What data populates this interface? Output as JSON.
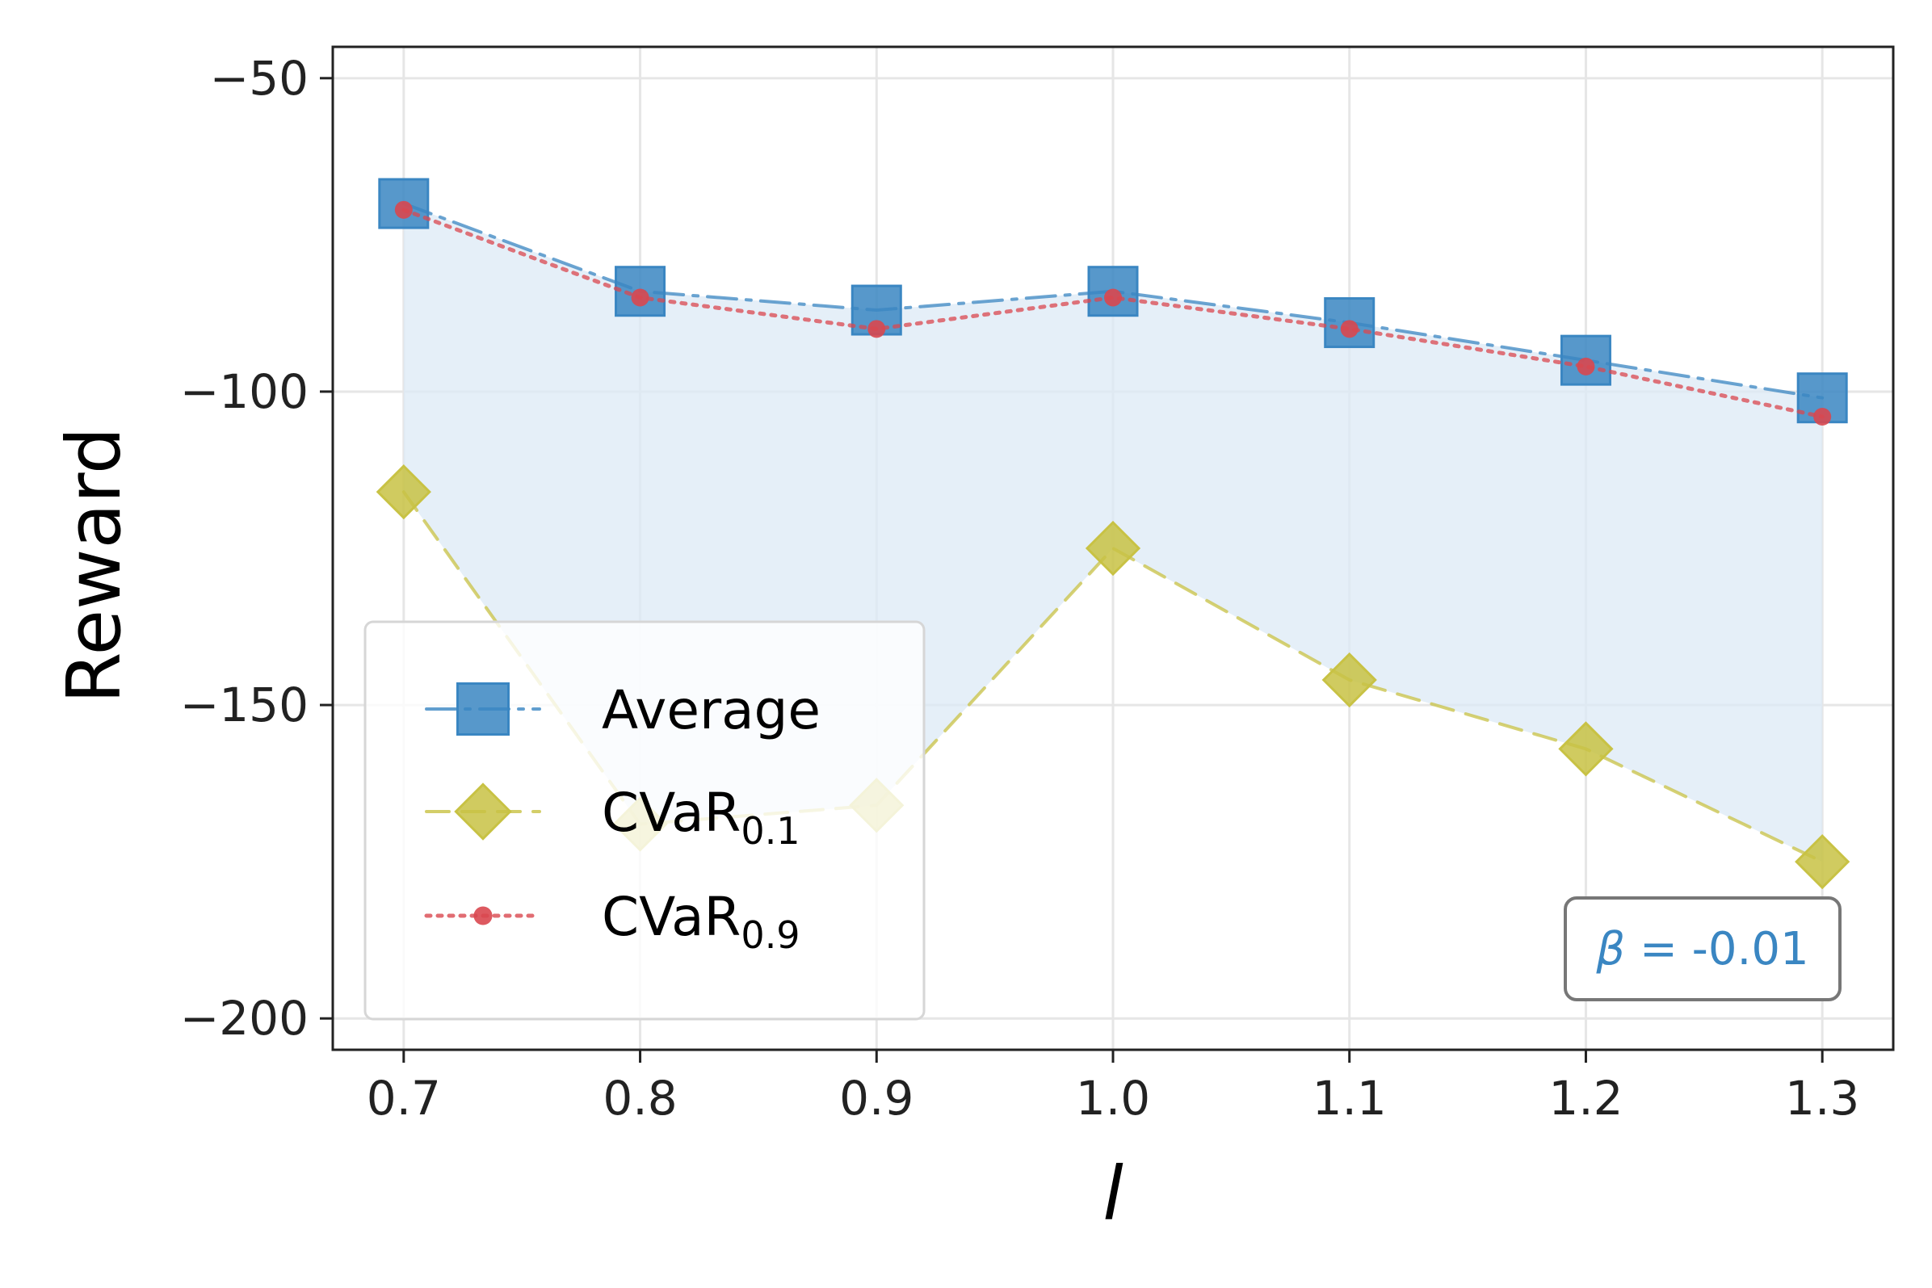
{
  "chart_data": {
    "type": "line",
    "title": "",
    "xlabel": "l",
    "ylabel": "Reward",
    "x": [
      0.7,
      0.8,
      0.9,
      1.0,
      1.1,
      1.2,
      1.3
    ],
    "x_tick_labels": [
      "0.7",
      "0.8",
      "0.9",
      "1.0",
      "1.1",
      "1.2",
      "1.3"
    ],
    "xlim": [
      0.67,
      1.33
    ],
    "ylim": [
      -205,
      -45
    ],
    "y_ticks": [
      -50,
      -100,
      -150,
      -200
    ],
    "y_tick_labels": [
      "−50",
      "−100",
      "−150",
      "−200"
    ],
    "grid": true,
    "legend_position": "lower-left",
    "series": [
      {
        "name": "Average",
        "legend_main": "Average",
        "legend_sub": "",
        "values": [
          -70,
          -84,
          -87,
          -84,
          -89,
          -95,
          -101
        ],
        "color": "#3a86c2",
        "marker": "square",
        "linestyle": "dashdot"
      },
      {
        "name": "CVaR0.1",
        "legend_main": "CVaR",
        "legend_sub": "0.1",
        "values": [
          -116,
          -169,
          -166,
          -125,
          -146,
          -157,
          -175
        ],
        "color": "#c8c244",
        "marker": "diamond",
        "linestyle": "dashed"
      },
      {
        "name": "CVaR0.9",
        "legend_main": "CVaR",
        "legend_sub": "0.9",
        "values": [
          -71,
          -85,
          -90,
          -85,
          -90,
          -96,
          -104
        ],
        "color": "#d9474f",
        "marker": "dot",
        "linestyle": "dotted"
      }
    ],
    "fill_between": {
      "upper": "Average",
      "lower": "CVaR0.1",
      "color": "#dce9f5"
    },
    "annotation": {
      "symbol": "β",
      "text": " = -0.01",
      "position": "bottom-right",
      "color": "#3a86c2"
    }
  }
}
